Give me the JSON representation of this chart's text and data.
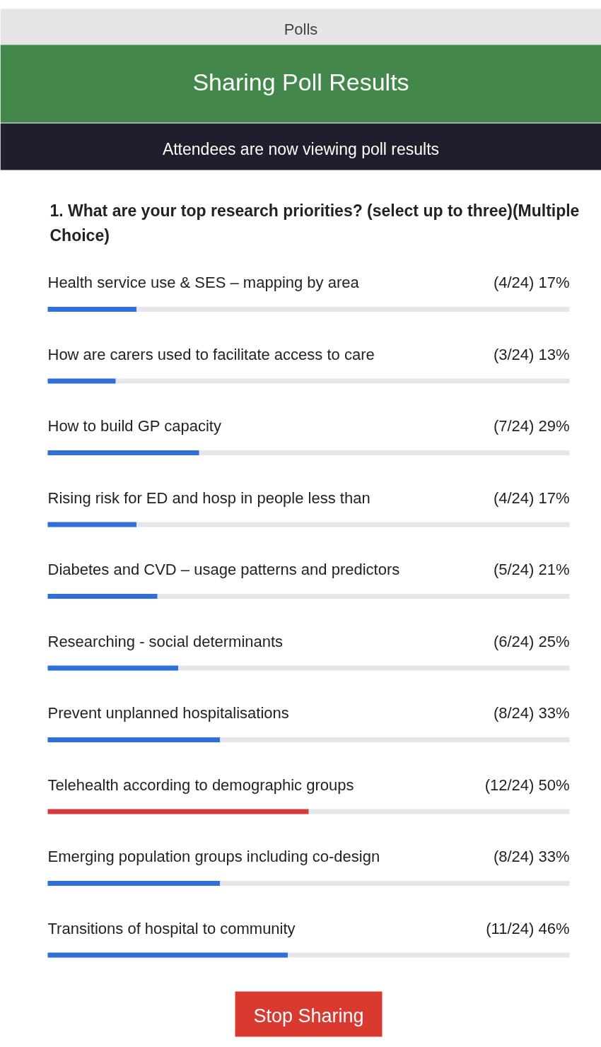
{
  "chart_data": {
    "type": "bar",
    "orientation": "horizontal",
    "title": "Sharing Poll Results",
    "subtitle": "Attendees are now viewing poll results",
    "annotations": [
      "Polls",
      "1. What are your top research priorities? (select up to three)(Multiple Choice)",
      "Stop Sharing"
    ],
    "categories": [
      "Health service use & SES – mapping by area",
      "How are carers used to facilitate access to care",
      "How to build GP capacity",
      "Rising risk for ED and hosp in people less than",
      "Diabetes and CVD – usage patterns and predictors",
      "Researching - social determinants",
      "Prevent unplanned hospitalisations",
      "Telehealth according to demographic groups",
      "Emerging population groups including co-design",
      "Transitions of hospital to community"
    ],
    "values": [
      17,
      13,
      29,
      17,
      21,
      25,
      33,
      50,
      33,
      46
    ],
    "value_labels": [
      "(4/24) 17%",
      "(3/24) 13%",
      "(7/24) 29%",
      "(4/24) 17%",
      "(5/24) 21%",
      "(6/24) 25%",
      "(8/24) 33%",
      "(12/24) 50%",
      "(8/24) 33%",
      "(11/24) 46%"
    ],
    "colors": [
      "#2f6fd8",
      "#2f6fd8",
      "#2f6fd8",
      "#2f6fd8",
      "#2f6fd8",
      "#2f6fd8",
      "#2f6fd8",
      "#d63a3a",
      "#2f6fd8",
      "#2f6fd8"
    ],
    "xlim": [
      0,
      100
    ],
    "tick_labels": false
  }
}
